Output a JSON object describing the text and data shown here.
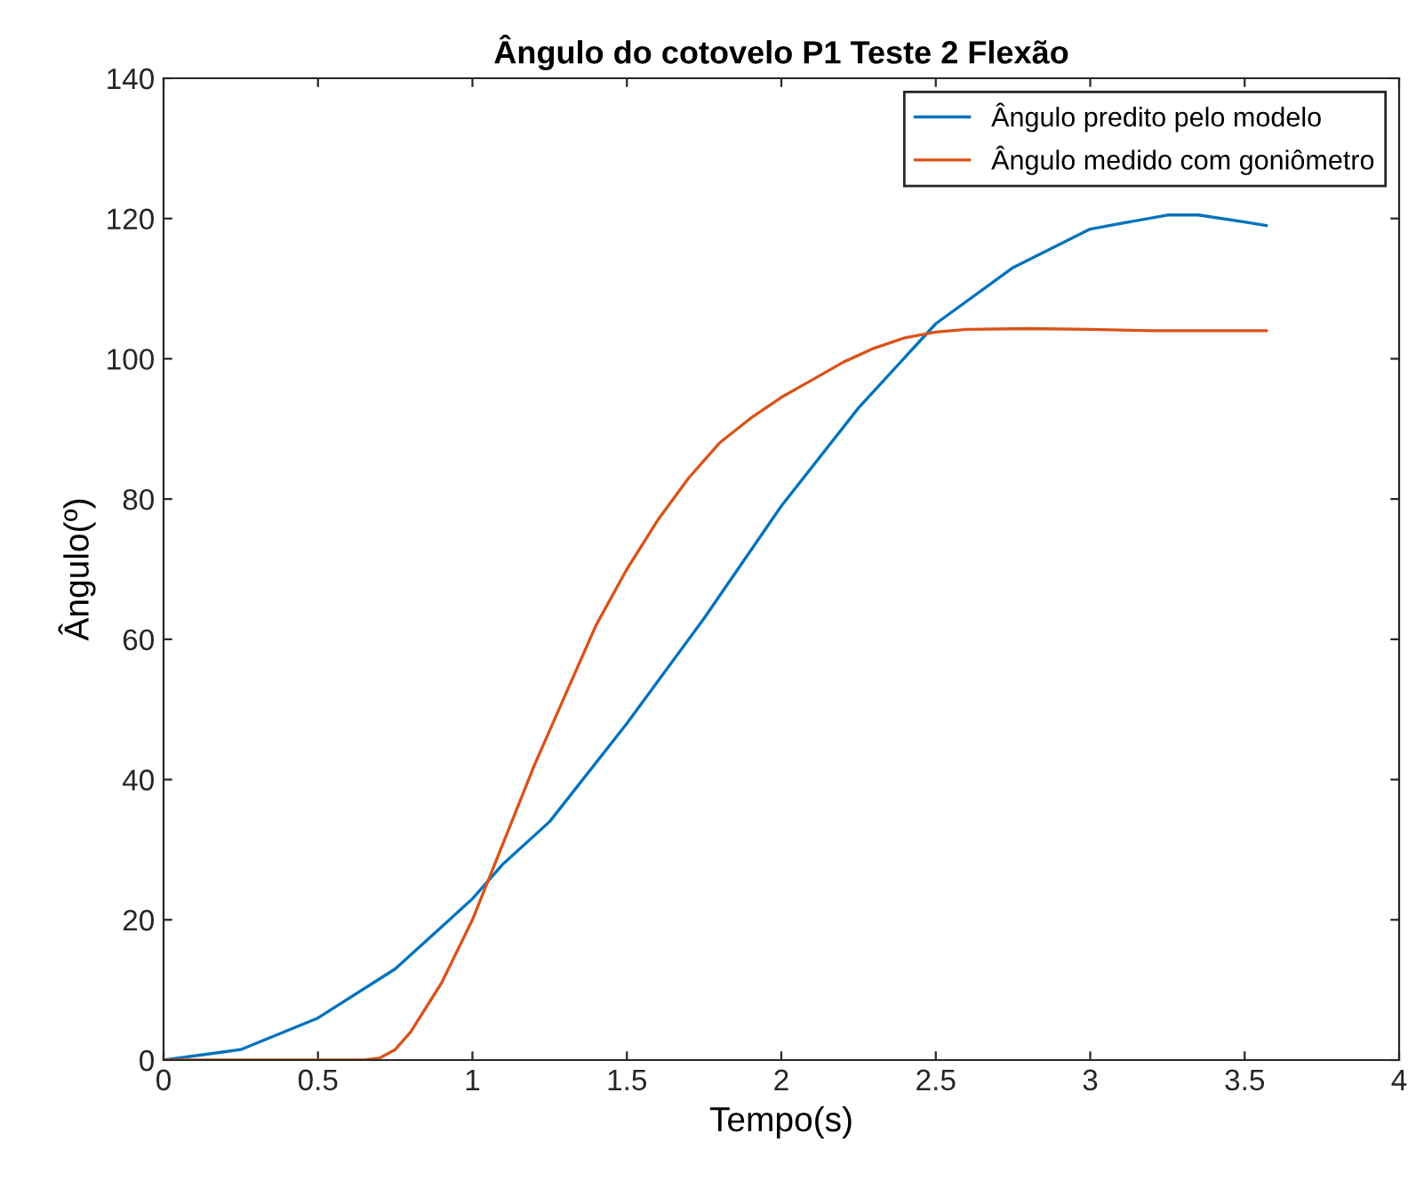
{
  "chart_data": {
    "type": "line",
    "title": "Ângulo do cotovelo P1 Teste 2 Flexão",
    "xlabel": "Tempo(s)",
    "ylabel": "Ângulo(º)",
    "xlim": [
      0,
      4
    ],
    "xticks": [
      0,
      0.5,
      1,
      1.5,
      2,
      2.5,
      3,
      3.5,
      4
    ],
    "ylim": [
      0,
      140
    ],
    "yticks": [
      0,
      20,
      40,
      60,
      80,
      100,
      120,
      140
    ],
    "grid": false,
    "legend": "top right",
    "series": [
      {
        "name": "Ângulo predito pelo modelo",
        "color": "#0072bd",
        "x": [
          0,
          0.25,
          0.5,
          0.75,
          1.0,
          1.1,
          1.25,
          1.5,
          1.75,
          2.0,
          2.25,
          2.5,
          2.75,
          3.0,
          3.25,
          3.35,
          3.5,
          3.57
        ],
        "values": [
          0,
          1.5,
          6,
          13,
          23,
          28,
          34,
          48,
          63,
          79,
          93,
          105,
          113,
          118.5,
          120.5,
          120.5,
          119.5,
          119
        ]
      },
      {
        "name": "Ângulo medido com goniômetro",
        "color": "#d95319",
        "x": [
          0,
          0.65,
          0.7,
          0.75,
          0.8,
          0.9,
          1.0,
          1.1,
          1.2,
          1.3,
          1.4,
          1.5,
          1.6,
          1.7,
          1.8,
          1.9,
          2.0,
          2.1,
          2.2,
          2.3,
          2.4,
          2.5,
          2.6,
          2.8,
          3.0,
          3.2,
          3.4,
          3.57
        ],
        "values": [
          0,
          0,
          0.3,
          1.5,
          4,
          11,
          20,
          31,
          42,
          52,
          62,
          70,
          77,
          83,
          88,
          91.5,
          94.5,
          97,
          99.5,
          101.5,
          103,
          103.8,
          104.2,
          104.3,
          104.2,
          104,
          104,
          104
        ]
      }
    ]
  }
}
